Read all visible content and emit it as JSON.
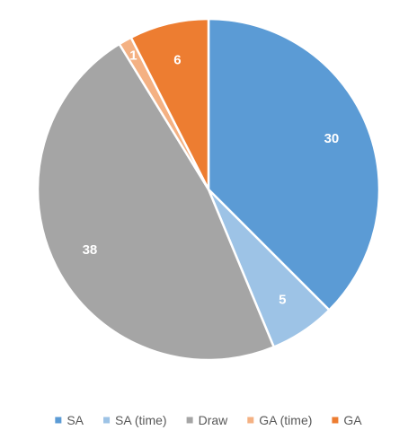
{
  "chart_data": {
    "type": "pie",
    "title": "",
    "legend_position": "bottom",
    "slices": [
      {
        "label": "SA",
        "value": 30,
        "color": "#5B9BD5"
      },
      {
        "label": "SA (time)",
        "value": 5,
        "color": "#9DC3E6"
      },
      {
        "label": "Draw",
        "value": 38,
        "color": "#A5A5A5"
      },
      {
        "label": "GA (time)",
        "value": 1,
        "color": "#F4B183"
      },
      {
        "label": "GA",
        "value": 6,
        "color": "#ED7D31"
      }
    ]
  }
}
